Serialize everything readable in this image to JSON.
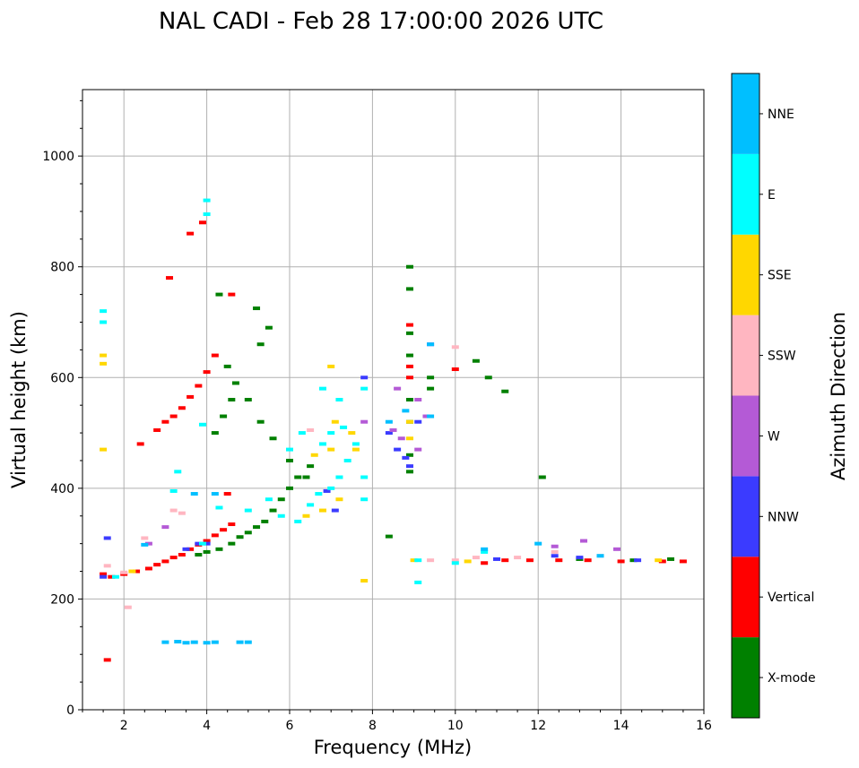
{
  "chart_data": {
    "type": "scatter",
    "title": "NAL CADI - Feb 28 17:00:00 2026 UTC",
    "xlabel": "Frequency (MHz)",
    "ylabel": "Virtual height (km)",
    "xlim": [
      1,
      16
    ],
    "ylim": [
      0,
      1120
    ],
    "xticks": [
      2,
      4,
      6,
      8,
      10,
      12,
      14,
      16
    ],
    "yticks": [
      0,
      200,
      400,
      600,
      800,
      1000
    ],
    "grid": true,
    "colorbar": {
      "label": "Azimuth Direction",
      "categories": [
        {
          "name": "X-mode",
          "color": "#008000"
        },
        {
          "name": "Vertical",
          "color": "#ff0000"
        },
        {
          "name": "NNW",
          "color": "#3b3bff"
        },
        {
          "name": "W",
          "color": "#b45ad6"
        },
        {
          "name": "SSW",
          "color": "#ffb6c1"
        },
        {
          "name": "SSE",
          "color": "#ffd700"
        },
        {
          "name": "E",
          "color": "#00ffff"
        },
        {
          "name": "NNE",
          "color": "#00bfff"
        }
      ]
    },
    "series": [
      {
        "name": "Vertical",
        "points": [
          [
            1.5,
            245
          ],
          [
            1.7,
            240
          ],
          [
            2.0,
            245
          ],
          [
            2.3,
            250
          ],
          [
            2.6,
            255
          ],
          [
            2.8,
            262
          ],
          [
            3.0,
            268
          ],
          [
            3.2,
            275
          ],
          [
            3.4,
            280
          ],
          [
            3.6,
            290
          ],
          [
            3.8,
            298
          ],
          [
            4.0,
            305
          ],
          [
            4.2,
            315
          ],
          [
            4.4,
            325
          ],
          [
            4.6,
            335
          ],
          [
            2.4,
            480
          ],
          [
            2.8,
            505
          ],
          [
            3.0,
            520
          ],
          [
            3.2,
            530
          ],
          [
            3.4,
            545
          ],
          [
            3.6,
            565
          ],
          [
            3.8,
            585
          ],
          [
            4.0,
            610
          ],
          [
            4.2,
            640
          ],
          [
            3.1,
            780
          ],
          [
            3.6,
            860
          ],
          [
            3.9,
            880
          ],
          [
            1.6,
            90
          ],
          [
            10.0,
            615
          ],
          [
            10.7,
            265
          ],
          [
            11.2,
            270
          ],
          [
            11.8,
            270
          ],
          [
            12.5,
            270
          ],
          [
            13.2,
            270
          ],
          [
            14.0,
            268
          ],
          [
            15.0,
            268
          ],
          [
            15.5,
            268
          ],
          [
            8.9,
            695
          ],
          [
            8.9,
            620
          ],
          [
            8.9,
            600
          ],
          [
            4.6,
            750
          ],
          [
            4.5,
            390
          ]
        ]
      },
      {
        "name": "X-mode",
        "points": [
          [
            3.8,
            280
          ],
          [
            4.0,
            285
          ],
          [
            4.3,
            290
          ],
          [
            4.6,
            300
          ],
          [
            4.8,
            312
          ],
          [
            5.0,
            320
          ],
          [
            5.2,
            330
          ],
          [
            5.4,
            340
          ],
          [
            5.6,
            360
          ],
          [
            5.8,
            380
          ],
          [
            6.0,
            400
          ],
          [
            6.2,
            420
          ],
          [
            6.5,
            440
          ],
          [
            4.5,
            620
          ],
          [
            4.7,
            590
          ],
          [
            5.0,
            560
          ],
          [
            5.3,
            520
          ],
          [
            5.6,
            490
          ],
          [
            6.0,
            450
          ],
          [
            6.4,
            420
          ],
          [
            4.2,
            500
          ],
          [
            4.4,
            530
          ],
          [
            4.6,
            560
          ],
          [
            5.2,
            725
          ],
          [
            5.3,
            660
          ],
          [
            8.9,
            430
          ],
          [
            8.9,
            460
          ],
          [
            8.9,
            520
          ],
          [
            8.9,
            560
          ],
          [
            8.9,
            640
          ],
          [
            8.9,
            680
          ],
          [
            8.9,
            760
          ],
          [
            8.9,
            800
          ],
          [
            9.4,
            580
          ],
          [
            9.4,
            600
          ],
          [
            10.5,
            630
          ],
          [
            10.8,
            600
          ],
          [
            11.2,
            575
          ],
          [
            12.1,
            420
          ],
          [
            8.4,
            313
          ],
          [
            13.0,
            272
          ],
          [
            14.3,
            270
          ],
          [
            15.2,
            272
          ],
          [
            5.5,
            690
          ],
          [
            4.3,
            750
          ]
        ]
      },
      {
        "name": "NNW",
        "points": [
          [
            3.5,
            290
          ],
          [
            3.8,
            300
          ],
          [
            4.0,
            300
          ],
          [
            8.4,
            500
          ],
          [
            8.6,
            470
          ],
          [
            8.8,
            455
          ],
          [
            8.9,
            440
          ],
          [
            9.1,
            520
          ],
          [
            9.4,
            660
          ],
          [
            7.8,
            600
          ],
          [
            11.0,
            272
          ],
          [
            12.4,
            278
          ],
          [
            13.0,
            275
          ],
          [
            14.4,
            270
          ],
          [
            6.9,
            395
          ],
          [
            7.1,
            360
          ],
          [
            1.6,
            310
          ],
          [
            1.5,
            240
          ]
        ]
      },
      {
        "name": "W",
        "points": [
          [
            8.5,
            505
          ],
          [
            8.7,
            490
          ],
          [
            9.1,
            470
          ],
          [
            9.1,
            560
          ],
          [
            9.3,
            530
          ],
          [
            8.6,
            580
          ],
          [
            12.4,
            295
          ],
          [
            13.1,
            305
          ],
          [
            13.9,
            290
          ],
          [
            3.0,
            330
          ],
          [
            7.8,
            520
          ],
          [
            2.6,
            300
          ]
        ]
      },
      {
        "name": "SSW",
        "points": [
          [
            1.6,
            260
          ],
          [
            2.0,
            248
          ],
          [
            2.5,
            310
          ],
          [
            3.2,
            360
          ],
          [
            3.4,
            355
          ],
          [
            10.0,
            270
          ],
          [
            10.5,
            275
          ],
          [
            11.5,
            275
          ],
          [
            12.4,
            285
          ],
          [
            13.5,
            278
          ],
          [
            9.4,
            270
          ],
          [
            10.0,
            655
          ],
          [
            6.5,
            505
          ],
          [
            2.1,
            185
          ]
        ]
      },
      {
        "name": "SSE",
        "points": [
          [
            1.5,
            470
          ],
          [
            1.5,
            640
          ],
          [
            1.5,
            625
          ],
          [
            2.2,
            250
          ],
          [
            6.4,
            350
          ],
          [
            6.8,
            360
          ],
          [
            7.2,
            380
          ],
          [
            7.0,
            470
          ],
          [
            7.1,
            520
          ],
          [
            7.5,
            500
          ],
          [
            7.6,
            470
          ],
          [
            8.9,
            490
          ],
          [
            8.9,
            520
          ],
          [
            7.8,
            233
          ],
          [
            9.0,
            270
          ],
          [
            10.3,
            268
          ],
          [
            14.9,
            270
          ],
          [
            7.0,
            620
          ],
          [
            6.6,
            460
          ]
        ]
      },
      {
        "name": "E",
        "points": [
          [
            1.5,
            720
          ],
          [
            1.5,
            700
          ],
          [
            4.0,
            920
          ],
          [
            4.0,
            895
          ],
          [
            3.9,
            515
          ],
          [
            3.3,
            430
          ],
          [
            5.0,
            360
          ],
          [
            5.8,
            350
          ],
          [
            6.2,
            340
          ],
          [
            6.5,
            370
          ],
          [
            6.7,
            390
          ],
          [
            7.0,
            400
          ],
          [
            7.2,
            420
          ],
          [
            7.4,
            450
          ],
          [
            7.6,
            480
          ],
          [
            7.8,
            420
          ],
          [
            7.8,
            380
          ],
          [
            6.8,
            480
          ],
          [
            7.3,
            510
          ],
          [
            7.2,
            560
          ],
          [
            6.8,
            580
          ],
          [
            7.8,
            580
          ],
          [
            9.1,
            230
          ],
          [
            10.0,
            265
          ],
          [
            10.7,
            285
          ],
          [
            9.1,
            270
          ],
          [
            3.2,
            395
          ],
          [
            3.9,
            300
          ],
          [
            4.3,
            365
          ],
          [
            6.0,
            470
          ],
          [
            5.5,
            380
          ],
          [
            6.3,
            500
          ],
          [
            7.0,
            500
          ],
          [
            1.8,
            240
          ]
        ]
      },
      {
        "name": "NNE",
        "points": [
          [
            3.0,
            122
          ],
          [
            3.3,
            123
          ],
          [
            3.5,
            121
          ],
          [
            3.7,
            122
          ],
          [
            4.0,
            121
          ],
          [
            4.2,
            122
          ],
          [
            4.8,
            122
          ],
          [
            5.0,
            122
          ],
          [
            3.7,
            390
          ],
          [
            4.2,
            390
          ],
          [
            9.4,
            660
          ],
          [
            8.4,
            520
          ],
          [
            8.8,
            540
          ],
          [
            2.5,
            298
          ],
          [
            9.4,
            530
          ],
          [
            10.7,
            290
          ],
          [
            12.0,
            300
          ],
          [
            13.5,
            278
          ]
        ]
      }
    ]
  }
}
